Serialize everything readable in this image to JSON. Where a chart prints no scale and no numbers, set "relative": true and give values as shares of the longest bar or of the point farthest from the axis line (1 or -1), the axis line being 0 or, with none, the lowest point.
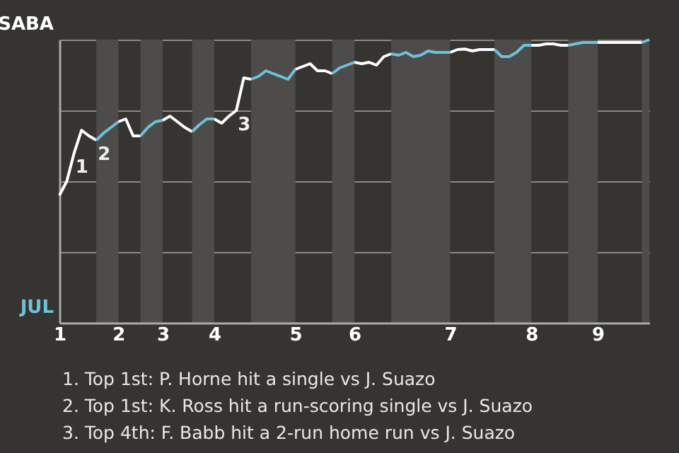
{
  "chart_data": {
    "type": "line",
    "relative": true,
    "categories": [
      "1",
      null,
      null,
      null,
      null,
      null,
      null,
      null,
      "2",
      null,
      null,
      null,
      null,
      null,
      "3",
      null,
      null,
      null,
      null,
      null,
      null,
      "4",
      null,
      null,
      null,
      null,
      null,
      null,
      null,
      null,
      null,
      null,
      "5",
      null,
      null,
      null,
      null,
      null,
      null,
      null,
      "6",
      null,
      null,
      null,
      null,
      null,
      null,
      null,
      null,
      null,
      null,
      null,
      null,
      "7",
      null,
      null,
      null,
      null,
      null,
      null,
      null,
      null,
      null,
      null,
      "8",
      null,
      null,
      null,
      null,
      null,
      null,
      null,
      null,
      "9",
      null,
      null,
      null,
      null,
      null,
      null,
      null
    ],
    "series": [
      {
        "color": "#ffffff",
        "values": [
          0.45,
          0.5,
          0.6,
          0.68,
          0.66,
          0.645,
          null,
          null,
          0.71,
          0.72,
          0.66,
          0.66,
          null,
          null,
          0.715,
          0.73,
          0.71,
          0.69,
          0.675,
          null,
          null,
          0.72,
          0.705,
          0.73,
          0.75,
          0.865,
          0.86,
          null,
          null,
          null,
          null,
          null,
          0.895,
          0.905,
          0.915,
          0.89,
          0.89,
          0.88,
          null,
          null,
          0.92,
          0.915,
          0.92,
          0.91,
          0.94,
          0.95,
          null,
          null,
          null,
          null,
          null,
          null,
          null,
          0.955,
          0.965,
          0.967,
          0.96,
          0.965,
          0.965,
          0.965,
          null,
          null,
          null,
          null,
          0.98,
          0.98,
          0.985,
          0.985,
          0.98,
          0.98,
          null,
          null,
          null,
          0.99,
          0.99,
          0.99,
          0.99,
          0.99,
          0.99,
          0.99,
          null
        ]
      },
      {
        "color": "#6ec1d9",
        "values": [
          null,
          null,
          null,
          null,
          null,
          0.645,
          0.67,
          0.69,
          0.71,
          null,
          null,
          0.66,
          0.69,
          0.71,
          0.715,
          null,
          null,
          null,
          0.675,
          0.7,
          0.72,
          0.72,
          null,
          null,
          null,
          null,
          0.86,
          0.87,
          0.89,
          0.88,
          0.87,
          0.86,
          0.895,
          null,
          null,
          null,
          null,
          0.88,
          0.9,
          0.91,
          0.92,
          null,
          null,
          null,
          null,
          0.95,
          0.945,
          0.955,
          0.94,
          0.945,
          0.96,
          0.955,
          0.955,
          0.955,
          null,
          null,
          null,
          null,
          null,
          0.965,
          0.94,
          0.94,
          0.955,
          0.98,
          0.98,
          null,
          null,
          null,
          null,
          0.98,
          0.985,
          0.99,
          0.99,
          0.99,
          null,
          null,
          null,
          null,
          null,
          0.99,
          1.0
        ]
      }
    ],
    "grid": "y",
    "annotations": [
      "SABA",
      "JUL",
      {
        "text": "1",
        "y": 0.6
      },
      {
        "text": "2",
        "y": 0.645
      },
      {
        "text": "3",
        "y": 0.75
      },
      "1. Top 1st: P. Horne hit a single vs J. Suazo",
      "2. Top 1st: K. Ross hit a run-scoring single vs J. Suazo",
      "3. Top 4th: F. Babb hit a 2-run home run vs J. Suazo"
    ]
  }
}
